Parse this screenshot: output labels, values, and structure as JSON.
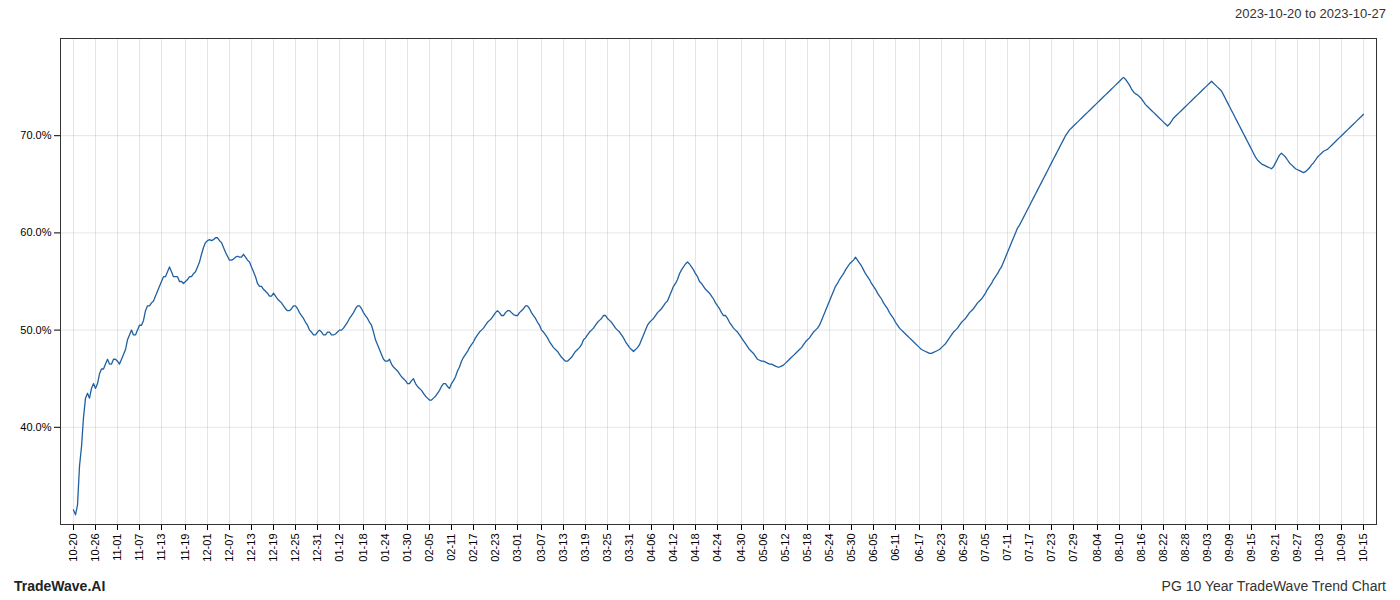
{
  "chart_data": {
    "type": "line",
    "title": "2023-10-20 to 2023-10-27",
    "annotations": [
      "TradeWave.AI",
      "PG 10 Year TradeWave Trend Chart"
    ],
    "color": "#2060a0",
    "grid": true,
    "ylim": [
      0.3,
      0.8
    ],
    "yticks": [
      {
        "value": 0.4,
        "label": "40.0%"
      },
      {
        "value": 0.5,
        "label": "50.0%"
      },
      {
        "value": 0.6,
        "label": "60.0%"
      },
      {
        "value": 0.7,
        "label": "70.0%"
      }
    ],
    "categories": [
      "10-20",
      null,
      null,
      null,
      null,
      null,
      null,
      null,
      null,
      null,
      null,
      "10-26",
      null,
      null,
      null,
      null,
      null,
      null,
      null,
      null,
      null,
      null,
      "11-01",
      null,
      null,
      null,
      null,
      null,
      null,
      null,
      null,
      null,
      null,
      "11-07",
      null,
      null,
      null,
      null,
      null,
      null,
      null,
      null,
      null,
      null,
      "11-13",
      null,
      null,
      null,
      null,
      null,
      null,
      null,
      null,
      null,
      null,
      null,
      "11-19",
      null,
      null,
      null,
      null,
      null,
      null,
      null,
      null,
      null,
      null,
      "12-01",
      null,
      null,
      null,
      null,
      null,
      null,
      null,
      null,
      null,
      null,
      "12-07",
      null,
      null,
      null,
      null,
      null,
      null,
      null,
      null,
      null,
      null,
      "12-13",
      null,
      null,
      null,
      null,
      null,
      null,
      null,
      null,
      null,
      null,
      "12-19",
      null,
      null,
      null,
      null,
      null,
      null,
      null,
      null,
      null,
      null,
      "12-25",
      null,
      null,
      null,
      null,
      null,
      null,
      null,
      null,
      null,
      null,
      "12-31",
      null,
      null,
      null,
      null,
      null,
      null,
      null,
      null,
      null,
      null,
      "01-12",
      null,
      null,
      null,
      null,
      null,
      null,
      null,
      null,
      null,
      null,
      null,
      "01-18",
      null,
      null,
      null,
      null,
      null,
      null,
      null,
      null,
      null,
      null,
      "01-24",
      null,
      null,
      null,
      null,
      null,
      null,
      null,
      null,
      null,
      null,
      "01-30",
      null,
      null,
      null,
      null,
      null,
      null,
      null,
      null,
      null,
      null,
      "02-05",
      null,
      null,
      null,
      null,
      null,
      null,
      null,
      null,
      null,
      null,
      "02-11",
      null,
      null,
      null,
      null,
      null,
      null,
      null,
      null,
      null,
      null,
      "02-17",
      null,
      null,
      null,
      null,
      null,
      null,
      null,
      null,
      null,
      null,
      "02-23",
      null,
      null,
      null,
      null,
      null,
      null,
      null,
      null,
      null,
      null,
      "03-01",
      null,
      null,
      null,
      null,
      null,
      null,
      null,
      null,
      null,
      null,
      null,
      "03-07",
      null,
      null,
      null,
      null,
      null,
      null,
      null,
      null,
      null,
      null,
      "03-13",
      null,
      null,
      null,
      null,
      null,
      null,
      null,
      null,
      null,
      null,
      "03-19",
      null,
      null,
      null,
      null,
      null,
      null,
      null,
      null,
      null,
      null,
      "03-25",
      null,
      null,
      null,
      null,
      null,
      null,
      null,
      null,
      null,
      null,
      "03-31",
      null,
      null,
      null,
      null,
      null,
      null,
      null,
      null,
      null,
      null,
      "04-06",
      null,
      null,
      null,
      null,
      null,
      null,
      null,
      null,
      null,
      null,
      "04-12",
      null,
      null,
      null,
      null,
      null,
      null,
      null,
      null,
      null,
      null,
      "04-18",
      null,
      null,
      null,
      null,
      null,
      null,
      null,
      null,
      null,
      null,
      "04-24",
      null,
      null,
      null,
      null,
      null,
      null,
      null,
      null,
      null,
      null,
      null,
      "04-30",
      null,
      null,
      null,
      null,
      null,
      null,
      null,
      null,
      null,
      null,
      "05-06",
      null,
      null,
      null,
      null,
      null,
      null,
      null,
      null,
      null,
      null,
      "05-12",
      null,
      null,
      null,
      null,
      null,
      null,
      null,
      null,
      null,
      null,
      "05-18",
      null,
      null,
      null,
      null,
      null,
      null,
      null,
      null,
      null,
      null,
      "05-24",
      null,
      null,
      null,
      null,
      null,
      null,
      null,
      null,
      null,
      null,
      "05-30",
      null,
      null,
      null,
      null,
      null,
      null,
      null,
      null,
      null,
      null,
      "06-05",
      null,
      null,
      null,
      null,
      null,
      null,
      null,
      null,
      null,
      null,
      "06-11",
      null,
      null,
      null,
      null,
      null,
      null,
      null,
      null,
      null,
      null,
      null,
      "06-17",
      null,
      null,
      null,
      null,
      null,
      null,
      null,
      null,
      null,
      null,
      "06-23",
      null,
      null,
      null,
      null,
      null,
      null,
      null,
      null,
      null,
      null,
      "06-29",
      null,
      null,
      null,
      null,
      null,
      null,
      null,
      null,
      null,
      null,
      "07-05",
      null,
      null,
      null,
      null,
      null,
      null,
      null,
      null,
      null,
      null,
      "07-11",
      null,
      null,
      null,
      null,
      null,
      null,
      null,
      null,
      null,
      null,
      "07-17",
      null,
      null,
      null,
      null,
      null,
      null,
      null,
      null,
      null,
      null,
      "07-23",
      null,
      null,
      null,
      null,
      null,
      null,
      null,
      null,
      null,
      null,
      "07-29",
      null,
      null,
      null,
      null,
      null,
      null,
      null,
      null,
      null,
      null,
      null,
      "08-04",
      null,
      null,
      null,
      null,
      null,
      null,
      null,
      null,
      null,
      null,
      "08-10",
      null,
      null,
      null,
      null,
      null,
      null,
      null,
      null,
      null,
      null,
      "08-16",
      null,
      null,
      null,
      null,
      null,
      null,
      null,
      null,
      null,
      null,
      "08-22",
      null,
      null,
      null,
      null,
      null,
      null,
      null,
      null,
      null,
      null,
      "08-28",
      null,
      null,
      null,
      null,
      null,
      null,
      null,
      null,
      null,
      null,
      "09-03",
      null,
      null,
      null,
      null,
      null,
      null,
      null,
      null,
      null,
      null,
      "09-09",
      null,
      null,
      null,
      null,
      null,
      null,
      null,
      null,
      null,
      null,
      "09-15",
      null,
      null,
      null,
      null,
      null,
      null,
      null,
      null,
      null,
      null,
      null,
      "09-21",
      null,
      null,
      null,
      null,
      null,
      null,
      null,
      null,
      null,
      null,
      "09-27",
      null,
      null,
      null,
      null,
      null,
      null,
      null,
      null,
      null,
      null,
      "10-03",
      null,
      null,
      null,
      null,
      null,
      null,
      null,
      null,
      null,
      null,
      "10-09",
      null,
      null,
      null,
      null,
      null,
      null,
      null,
      null,
      null,
      null,
      "10-15"
    ],
    "values": [
      0.315,
      0.31,
      0.32,
      0.36,
      0.38,
      0.41,
      0.43,
      0.435,
      0.43,
      0.44,
      0.445,
      0.44,
      0.445,
      0.455,
      0.46,
      0.46,
      0.465,
      0.47,
      0.465,
      0.465,
      0.47,
      0.47,
      0.468,
      0.465,
      0.47,
      0.475,
      0.48,
      0.49,
      0.495,
      0.5,
      0.495,
      0.495,
      0.5,
      0.505,
      0.505,
      0.51,
      0.52,
      0.525,
      0.525,
      0.528,
      0.53,
      0.535,
      0.54,
      0.545,
      0.55,
      0.555,
      0.555,
      0.56,
      0.565,
      0.56,
      0.555,
      0.555,
      0.555,
      0.55,
      0.55,
      0.548,
      0.55,
      0.552,
      0.555,
      0.555,
      0.558,
      0.56,
      0.565,
      0.57,
      0.578,
      0.585,
      0.59,
      0.592,
      0.593,
      0.592,
      0.593,
      0.595,
      0.595,
      0.592,
      0.59,
      0.585,
      0.58,
      0.576,
      0.572,
      0.572,
      0.573,
      0.575,
      0.576,
      0.575,
      0.575,
      0.578,
      0.575,
      0.572,
      0.57,
      0.565,
      0.56,
      0.555,
      0.548,
      0.545,
      0.545,
      0.542,
      0.54,
      0.538,
      0.535,
      0.535,
      0.538,
      0.535,
      0.532,
      0.53,
      0.528,
      0.525,
      0.522,
      0.52,
      0.52,
      0.522,
      0.525,
      0.525,
      0.522,
      0.518,
      0.515,
      0.512,
      0.508,
      0.505,
      0.5,
      0.498,
      0.495,
      0.495,
      0.498,
      0.5,
      0.498,
      0.495,
      0.495,
      0.498,
      0.498,
      0.495,
      0.495,
      0.496,
      0.498,
      0.5,
      0.5,
      0.502,
      0.505,
      0.508,
      0.512,
      0.515,
      0.518,
      0.522,
      0.525,
      0.525,
      0.522,
      0.518,
      0.515,
      0.512,
      0.508,
      0.505,
      0.498,
      0.49,
      0.485,
      0.48,
      0.475,
      0.47,
      0.468,
      0.468,
      0.47,
      0.465,
      0.462,
      0.46,
      0.458,
      0.455,
      0.452,
      0.45,
      0.448,
      0.445,
      0.445,
      0.448,
      0.45,
      0.445,
      0.442,
      0.44,
      0.438,
      0.435,
      0.432,
      0.43,
      0.428,
      0.428,
      0.43,
      0.432,
      0.435,
      0.438,
      0.442,
      0.445,
      0.445,
      0.442,
      0.44,
      0.445,
      0.448,
      0.452,
      0.458,
      0.462,
      0.468,
      0.472,
      0.475,
      0.478,
      0.482,
      0.485,
      0.488,
      0.492,
      0.495,
      0.498,
      0.5,
      0.502,
      0.505,
      0.508,
      0.51,
      0.512,
      0.515,
      0.518,
      0.52,
      0.518,
      0.515,
      0.515,
      0.518,
      0.52,
      0.52,
      0.518,
      0.516,
      0.515,
      0.515,
      0.518,
      0.52,
      0.522,
      0.525,
      0.525,
      0.522,
      0.518,
      0.515,
      0.512,
      0.508,
      0.505,
      0.5,
      0.498,
      0.495,
      0.492,
      0.488,
      0.485,
      0.482,
      0.48,
      0.478,
      0.475,
      0.472,
      0.47,
      0.468,
      0.468,
      0.47,
      0.472,
      0.475,
      0.478,
      0.48,
      0.482,
      0.485,
      0.49,
      0.492,
      0.495,
      0.498,
      0.5,
      0.502,
      0.505,
      0.508,
      0.51,
      0.512,
      0.515,
      0.515,
      0.512,
      0.51,
      0.508,
      0.505,
      0.502,
      0.5,
      0.498,
      0.495,
      0.492,
      0.488,
      0.485,
      0.482,
      0.48,
      0.478,
      0.48,
      0.482,
      0.485,
      0.49,
      0.495,
      0.5,
      0.505,
      0.508,
      0.51,
      0.512,
      0.515,
      0.518,
      0.52,
      0.522,
      0.525,
      0.528,
      0.53,
      0.535,
      0.54,
      0.545,
      0.548,
      0.552,
      0.558,
      0.562,
      0.565,
      0.568,
      0.57,
      0.568,
      0.565,
      0.562,
      0.558,
      0.555,
      0.55,
      0.548,
      0.545,
      0.542,
      0.54,
      0.538,
      0.535,
      0.532,
      0.528,
      0.525,
      0.522,
      0.518,
      0.515,
      0.515,
      0.512,
      0.508,
      0.505,
      0.502,
      0.5,
      0.498,
      0.495,
      0.492,
      0.489,
      0.486,
      0.483,
      0.48,
      0.478,
      0.476,
      0.473,
      0.47,
      0.469,
      0.468,
      0.468,
      0.467,
      0.466,
      0.465,
      0.465,
      0.464,
      0.463,
      0.462,
      0.462,
      0.463,
      0.464,
      0.466,
      0.468,
      0.47,
      0.472,
      0.474,
      0.476,
      0.478,
      0.48,
      0.482,
      0.485,
      0.488,
      0.49,
      0.492,
      0.495,
      0.498,
      0.5,
      0.502,
      0.505,
      0.51,
      0.515,
      0.52,
      0.525,
      0.53,
      0.535,
      0.54,
      0.545,
      0.548,
      0.552,
      0.555,
      0.558,
      0.562,
      0.565,
      0.568,
      0.57,
      0.572,
      0.575,
      0.572,
      0.569,
      0.566,
      0.562,
      0.558,
      0.555,
      0.552,
      0.548,
      0.545,
      0.542,
      0.538,
      0.535,
      0.532,
      0.528,
      0.525,
      0.522,
      0.518,
      0.515,
      0.512,
      0.508,
      0.505,
      0.502,
      0.5,
      0.498,
      0.496,
      0.494,
      0.492,
      0.49,
      0.488,
      0.486,
      0.484,
      0.482,
      0.48,
      0.479,
      0.478,
      0.477,
      0.476,
      0.476,
      0.477,
      0.478,
      0.479,
      0.48,
      0.482,
      0.484,
      0.486,
      0.489,
      0.492,
      0.495,
      0.498,
      0.5,
      0.502,
      0.505,
      0.508,
      0.51,
      0.512,
      0.515,
      0.518,
      0.52,
      0.522,
      0.525,
      0.528,
      0.53,
      0.532,
      0.535,
      0.538,
      0.542,
      0.545,
      0.548,
      0.552,
      0.555,
      0.558,
      0.562,
      0.565,
      0.57,
      0.575,
      0.58,
      0.585,
      0.59,
      0.595,
      0.6,
      0.605,
      0.608,
      0.612,
      0.616,
      0.62,
      0.624,
      0.628,
      0.632,
      0.636,
      0.64,
      0.644,
      0.648,
      0.652,
      0.656,
      0.66,
      0.664,
      0.668,
      0.672,
      0.676,
      0.68,
      0.684,
      0.688,
      0.692,
      0.696,
      0.7,
      0.703,
      0.706,
      0.708,
      0.71,
      0.712,
      0.714,
      0.716,
      0.718,
      0.72,
      0.722,
      0.724,
      0.726,
      0.728,
      0.73,
      0.732,
      0.734,
      0.736,
      0.738,
      0.74,
      0.742,
      0.744,
      0.746,
      0.748,
      0.75,
      0.752,
      0.754,
      0.756,
      0.758,
      0.76,
      0.758,
      0.755,
      0.752,
      0.748,
      0.745,
      0.743,
      0.742,
      0.74,
      0.738,
      0.735,
      0.732,
      0.73,
      0.728,
      0.726,
      0.724,
      0.722,
      0.72,
      0.718,
      0.716,
      0.714,
      0.712,
      0.71,
      0.712,
      0.715,
      0.718,
      0.72,
      0.722,
      0.724,
      0.726,
      0.728,
      0.73,
      0.732,
      0.734,
      0.736,
      0.738,
      0.74,
      0.742,
      0.744,
      0.746,
      0.748,
      0.75,
      0.752,
      0.754,
      0.756,
      0.754,
      0.752,
      0.75,
      0.748,
      0.746,
      0.742,
      0.738,
      0.734,
      0.73,
      0.726,
      0.722,
      0.718,
      0.714,
      0.71,
      0.706,
      0.702,
      0.698,
      0.694,
      0.69,
      0.686,
      0.682,
      0.678,
      0.675,
      0.673,
      0.671,
      0.67,
      0.669,
      0.668,
      0.667,
      0.666,
      0.668,
      0.672,
      0.676,
      0.68,
      0.682,
      0.68,
      0.678,
      0.675,
      0.672,
      0.67,
      0.668,
      0.666,
      0.665,
      0.664,
      0.663,
      0.662,
      0.663,
      0.665,
      0.667,
      0.67,
      0.672,
      0.675,
      0.678,
      0.68,
      0.682,
      0.684,
      0.685,
      0.686,
      0.688,
      0.69,
      0.692,
      0.694,
      0.696,
      0.698,
      0.7,
      0.702,
      0.704,
      0.706,
      0.708,
      0.71,
      0.712,
      0.714,
      0.716,
      0.718,
      0.72,
      0.722
    ]
  }
}
